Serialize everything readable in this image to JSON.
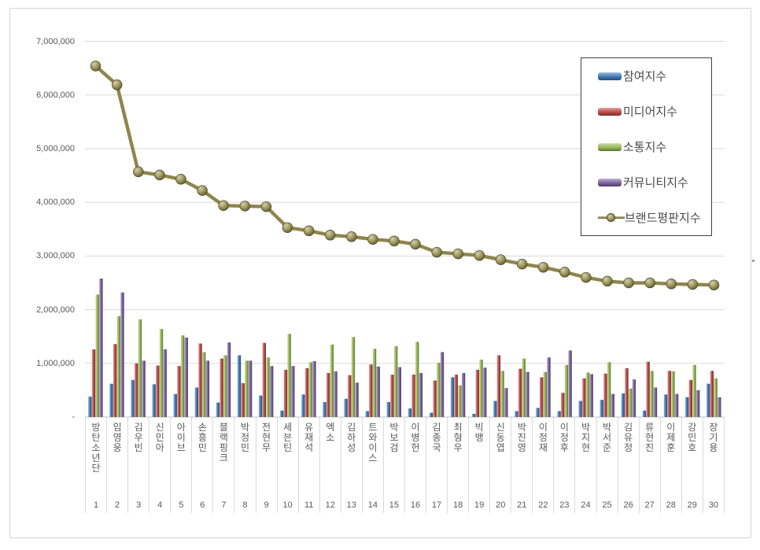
{
  "chart_data": {
    "type": "bar+line",
    "title": "",
    "categories": [
      "방탄소년단",
      "임영웅",
      "김우빈",
      "신민아",
      "아이브",
      "손흥민",
      "블랙핑크",
      "박정민",
      "전현무",
      "세븐틴",
      "유재석",
      "엑소",
      "김하성",
      "트와이스",
      "박보검",
      "이병헌",
      "김종국",
      "최형우",
      "빅뱅",
      "신동엽",
      "박진영",
      "이정재",
      "이정후",
      "박지현",
      "박서준",
      "김유정",
      "류현진",
      "이제훈",
      "강민호",
      "장기용"
    ],
    "ranks": [
      "1",
      "2",
      "3",
      "4",
      "5",
      "6",
      "7",
      "8",
      "9",
      "10",
      "11",
      "12",
      "13",
      "14",
      "15",
      "16",
      "17",
      "18",
      "19",
      "20",
      "21",
      "22",
      "23",
      "24",
      "25",
      "26",
      "27",
      "28",
      "29",
      "30"
    ],
    "bar_series": [
      {
        "key": "participation-index",
        "name": "참여지수",
        "color": "#3f7ab6",
        "values": [
          380000,
          620000,
          690000,
          610000,
          430000,
          550000,
          270000,
          1150000,
          400000,
          120000,
          420000,
          280000,
          340000,
          110000,
          280000,
          160000,
          80000,
          740000,
          60000,
          300000,
          110000,
          170000,
          110000,
          300000,
          320000,
          440000,
          120000,
          420000,
          370000,
          620000
        ]
      },
      {
        "key": "media-index",
        "name": "미디어지수",
        "color": "#be4b48",
        "values": [
          1260000,
          1360000,
          1000000,
          960000,
          950000,
          1370000,
          1090000,
          630000,
          1380000,
          880000,
          910000,
          820000,
          780000,
          980000,
          790000,
          790000,
          680000,
          790000,
          880000,
          1150000,
          900000,
          740000,
          450000,
          720000,
          810000,
          910000,
          1030000,
          860000,
          690000,
          860000
        ]
      },
      {
        "key": "communication-index",
        "name": "소통지수",
        "color": "#98b954",
        "values": [
          2280000,
          1880000,
          1820000,
          1640000,
          1520000,
          1210000,
          1150000,
          1050000,
          1110000,
          1550000,
          1020000,
          1350000,
          1490000,
          1270000,
          1320000,
          1400000,
          1010000,
          590000,
          1070000,
          860000,
          1090000,
          840000,
          970000,
          830000,
          1020000,
          530000,
          860000,
          850000,
          970000,
          720000
        ]
      },
      {
        "key": "community-index",
        "name": "커뮤니티지수",
        "color": "#7e63a1",
        "values": [
          2580000,
          2320000,
          1050000,
          1260000,
          1480000,
          1050000,
          1390000,
          1050000,
          950000,
          950000,
          1040000,
          850000,
          640000,
          940000,
          930000,
          820000,
          1210000,
          820000,
          920000,
          540000,
          840000,
          1110000,
          1240000,
          800000,
          430000,
          700000,
          550000,
          430000,
          500000,
          370000
        ]
      }
    ],
    "line_series": {
      "key": "brand-reputation-index",
      "name": "브랜드평판지수",
      "color": "#9a9254",
      "values": [
        6540000,
        6190000,
        4570000,
        4510000,
        4430000,
        4220000,
        3940000,
        3930000,
        3920000,
        3530000,
        3470000,
        3390000,
        3360000,
        3310000,
        3280000,
        3220000,
        3070000,
        3040000,
        3010000,
        2930000,
        2850000,
        2790000,
        2700000,
        2600000,
        2530000,
        2500000,
        2500000,
        2480000,
        2470000,
        2460000
      ],
      "marker": "sphere"
    },
    "y_axis": {
      "max": 7000000,
      "min": 0,
      "tick_step": 1000000,
      "tick_labels": [
        "7,000,000",
        "6,000,000",
        "5,000,000",
        "4,000,000",
        "3,000,000",
        "2,000,000",
        "1,000,000",
        "-"
      ],
      "grid": true
    },
    "legend_position": "top-right",
    "colors": {
      "gridline": "#d9d9d9",
      "axis_line": "#bfbfbf",
      "tick_text": "#595959"
    }
  }
}
